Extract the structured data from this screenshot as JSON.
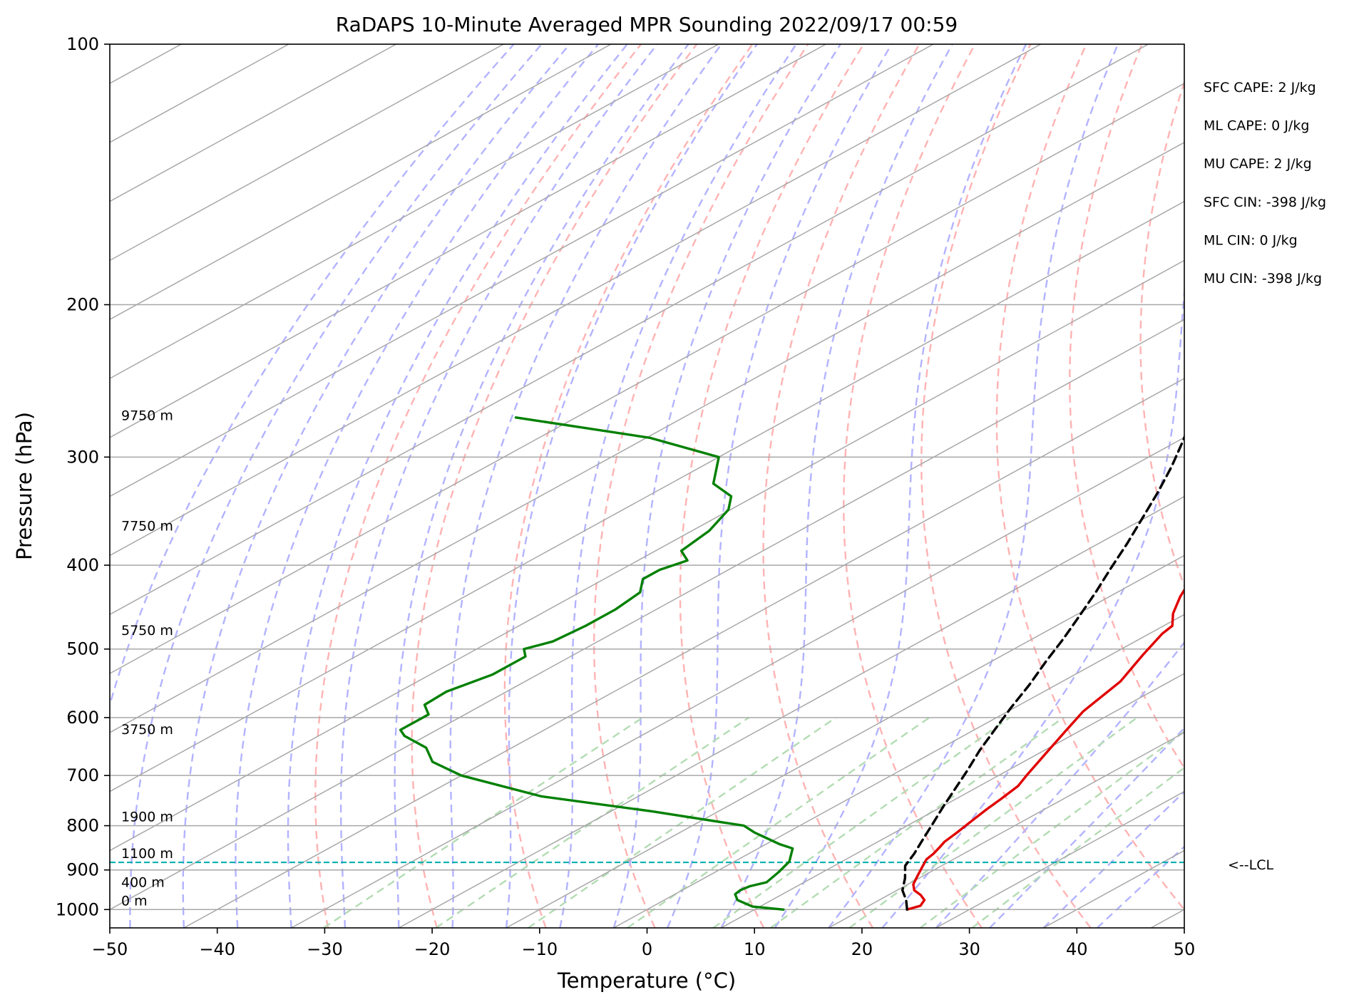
{
  "chart_data": {
    "type": "line",
    "title": "RaDAPS 10-Minute Averaged MPR Sounding 2022/09/17 00:59",
    "xlabel": "Temperature (°C)",
    "ylabel": "Pressure (hPa)",
    "xlim": [
      -50,
      50
    ],
    "ylim": [
      1050,
      100
    ],
    "y_scale": "log",
    "skew": "skew-T log-p",
    "x_ticks": [
      -50,
      -40,
      -30,
      -20,
      -10,
      0,
      10,
      20,
      30,
      40,
      50
    ],
    "x_tick_labels": [
      "−50",
      "−40",
      "−30",
      "−20",
      "−10",
      "0",
      "10",
      "20",
      "30",
      "40",
      "50"
    ],
    "y_ticks": [
      100,
      200,
      300,
      400,
      500,
      600,
      700,
      800,
      900,
      1000
    ],
    "y_tick_labels": [
      "100",
      "200",
      "300",
      "400",
      "500",
      "600",
      "700",
      "800",
      "900",
      "1000"
    ],
    "grid": true,
    "series": [
      {
        "color": "#e00000",
        "style": "solid",
        "points": [
          [
            24.2,
            1000
          ],
          [
            24.8,
            990
          ],
          [
            24.2,
            975
          ],
          [
            23,
            962
          ],
          [
            21.6,
            950
          ],
          [
            20.5,
            935
          ],
          [
            19.5,
            915
          ],
          [
            18.5,
            895
          ],
          [
            17.5,
            875
          ],
          [
            17.2,
            862
          ],
          [
            16.7,
            848
          ],
          [
            16.2,
            835
          ],
          [
            15.8,
            815
          ],
          [
            15.2,
            790
          ],
          [
            14.6,
            765
          ],
          [
            14.2,
            745
          ],
          [
            13.6,
            720
          ],
          [
            12.6,
            700
          ],
          [
            10.4,
            655
          ],
          [
            8.6,
            620
          ],
          [
            7,
            590
          ],
          [
            5.4,
            545
          ],
          [
            3,
            508
          ],
          [
            1.2,
            480
          ],
          [
            0.8,
            470
          ],
          [
            -1.2,
            455
          ],
          [
            -3.4,
            435
          ],
          [
            -6.4,
            405
          ],
          [
            -10.2,
            370
          ],
          [
            -12.2,
            345
          ],
          [
            -14,
            322
          ],
          [
            -15,
            303
          ],
          [
            -16,
            292
          ],
          [
            -18,
            275
          ]
        ]
      },
      {
        "color": "#000000",
        "style": "dashed",
        "points": [
          [
            24.2,
            1000
          ],
          [
            22.5,
            975
          ],
          [
            20.5,
            950
          ],
          [
            18.7,
            920
          ],
          [
            16.6,
            890
          ],
          [
            15.4,
            862
          ],
          [
            13.8,
            830
          ],
          [
            12,
            795
          ],
          [
            10.1,
            760
          ],
          [
            8.2,
            725
          ],
          [
            6.2,
            690
          ],
          [
            4,
            655
          ],
          [
            1.9,
            620
          ],
          [
            -0.3,
            585
          ],
          [
            -2.5,
            550
          ],
          [
            -4.9,
            517
          ],
          [
            -7.1,
            487
          ],
          [
            -9.5,
            458
          ],
          [
            -12,
            430
          ],
          [
            -14.6,
            404
          ],
          [
            -17.3,
            378
          ],
          [
            -20.1,
            354
          ],
          [
            -23.1,
            330
          ],
          [
            -26.2,
            308
          ],
          [
            -29.6,
            287
          ],
          [
            -31.4,
            277
          ]
        ]
      },
      {
        "color": "#008000",
        "style": "solid",
        "points": [
          [
            12.7,
            1000
          ],
          [
            11.8,
            998
          ],
          [
            9.3,
            992
          ],
          [
            6.8,
            975
          ],
          [
            5.6,
            960
          ],
          [
            5.4,
            950
          ],
          [
            5.6,
            940
          ],
          [
            6.5,
            930
          ],
          [
            5.9,
            905
          ],
          [
            5.1,
            880
          ],
          [
            3.2,
            850
          ],
          [
            1.2,
            840
          ],
          [
            -1.3,
            825
          ],
          [
            -3,
            815
          ],
          [
            -5.2,
            800
          ],
          [
            -16.2,
            770
          ],
          [
            -29,
            740
          ],
          [
            -40,
            700
          ],
          [
            -45,
            675
          ],
          [
            -48,
            650
          ],
          [
            -52,
            630
          ],
          [
            -53.4,
            620
          ],
          [
            -53.4,
            595
          ],
          [
            -55.4,
            580
          ],
          [
            -55.6,
            560
          ],
          [
            -54.2,
            535
          ],
          [
            -54.2,
            510
          ],
          [
            -55.6,
            500
          ],
          [
            -54.2,
            490
          ],
          [
            -53.8,
            470
          ],
          [
            -53.8,
            450
          ],
          [
            -54.4,
            430
          ],
          [
            -56.4,
            415
          ],
          [
            -56.4,
            405
          ],
          [
            -55.4,
            395
          ],
          [
            -57.6,
            385
          ],
          [
            -58.4,
            365
          ],
          [
            -60.2,
            345
          ],
          [
            -62.2,
            333
          ],
          [
            -66,
            322
          ],
          [
            -70,
            300
          ],
          [
            -79.7,
            285
          ],
          [
            -95.6,
            270
          ]
        ]
      }
    ],
    "lcl": {
      "pressure": 882,
      "label": "<--LCL",
      "color": "#00b0b0"
    },
    "height_labels": [
      {
        "p": 1000,
        "label": "0 m"
      },
      {
        "p": 952,
        "label": "400 m"
      },
      {
        "p": 882,
        "label": "1100 m"
      },
      {
        "p": 800,
        "label": "1900 m"
      },
      {
        "p": 634,
        "label": "3750 m"
      },
      {
        "p": 487,
        "label": "5750 m"
      },
      {
        "p": 369,
        "label": "7750 m"
      },
      {
        "p": 275,
        "label": "9750 m"
      }
    ],
    "annotations": [
      "SFC CAPE: 2 J/kg",
      "ML CAPE: 0 J/kg",
      "MU CAPE: 2 J/kg",
      "SFC CIN: -398 J/kg",
      "ML CIN: 0 J/kg",
      "MU CIN: -398 J/kg"
    ],
    "background_lines": {
      "isotherms_step": 10,
      "isotherm_color": "#a8a8a8",
      "dry_adiabat_color": "#ffb3b3",
      "moist_adiabat_color": "#b3b3ff",
      "mixing_ratio_color": "#b3dcb3",
      "mixing_ratios_gkg": [
        0.4,
        1,
        2,
        4,
        7,
        10,
        16,
        24,
        32
      ]
    }
  }
}
